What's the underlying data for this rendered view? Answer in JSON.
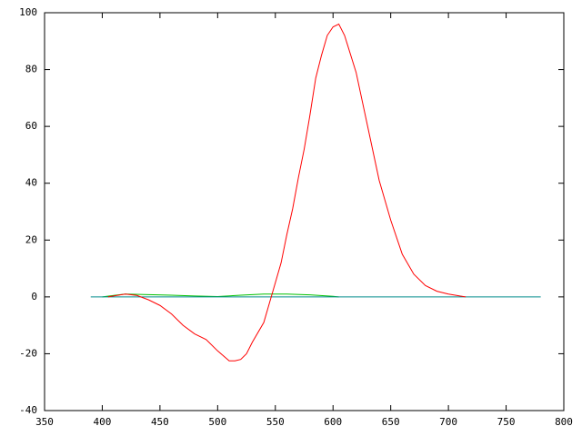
{
  "chart_data": {
    "type": "line",
    "xlim": [
      350,
      800
    ],
    "xticks": [
      350,
      400,
      450,
      500,
      550,
      600,
      650,
      700,
      750,
      800
    ],
    "ylim": [
      -40,
      100
    ],
    "yticks": [
      -40,
      -20,
      0,
      20,
      40,
      60,
      80,
      100
    ],
    "grid": false,
    "series": [
      {
        "color": "#00c000",
        "x": [
          400,
          420,
          440,
          460,
          480,
          500,
          520,
          540,
          560,
          580,
          600,
          605
        ],
        "values": [
          0,
          1,
          0.8,
          0.6,
          0.3,
          0.1,
          0.6,
          1,
          1,
          0.7,
          0.2,
          0
        ]
      },
      {
        "color": "#008b8b",
        "x": [
          390,
          780
        ],
        "values": [
          0,
          0
        ]
      },
      {
        "color": "#ff0000",
        "x": [
          405,
          420,
          430,
          440,
          450,
          460,
          470,
          480,
          490,
          500,
          510,
          515,
          520,
          525,
          530,
          540,
          545,
          550,
          555,
          560,
          565,
          570,
          575,
          580,
          585,
          590,
          595,
          600,
          605,
          610,
          620,
          630,
          640,
          650,
          660,
          670,
          680,
          690,
          700,
          710,
          715
        ],
        "values": [
          0,
          1,
          0.5,
          -1,
          -3,
          -6,
          -10,
          -13,
          -15,
          -19,
          -22.5,
          -22.5,
          -22,
          -20,
          -16,
          -9,
          -2,
          5,
          12,
          22,
          31,
          42,
          52,
          64,
          77,
          85,
          92,
          95,
          96,
          92,
          79,
          60,
          41,
          27,
          15,
          8,
          4,
          2,
          1,
          0.3,
          0
        ]
      }
    ]
  }
}
